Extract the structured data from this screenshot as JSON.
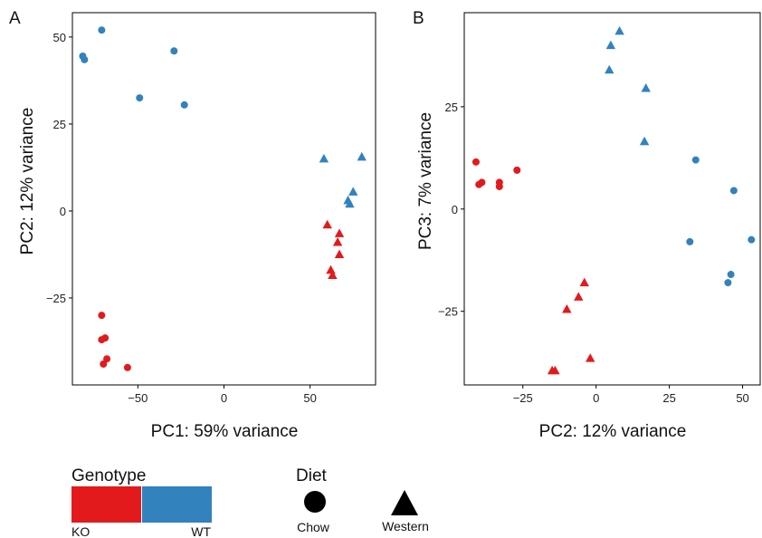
{
  "colors": {
    "KO": "#e31a1c",
    "WT": "#3182bd",
    "axis": "#000000",
    "legend_shape": "#000000"
  },
  "chart_data": [
    {
      "panel": "A",
      "type": "scatter",
      "xlabel": "PC1: 59% variance",
      "ylabel": "PC2: 12% variance",
      "xlim": [
        -88,
        88
      ],
      "ylim": [
        -50,
        57
      ],
      "xticks": [
        -50,
        0,
        50
      ],
      "yticks": [
        50,
        25,
        0,
        -25
      ],
      "ytick_labels": [
        "50",
        "25",
        "0",
        "−25"
      ],
      "xtick_labels": [
        "−50",
        "0",
        "50"
      ],
      "grid": false,
      "series": [
        {
          "genotype": "WT",
          "diet": "Chow",
          "points": [
            [
              -82,
              44.5
            ],
            [
              -81,
              43.5
            ],
            [
              -71,
              52
            ],
            [
              -29,
              46
            ],
            [
              -49,
              32.5
            ],
            [
              -23,
              30.5
            ]
          ]
        },
        {
          "genotype": "WT",
          "diet": "Western",
          "points": [
            [
              80,
              15.5
            ],
            [
              58,
              15
            ],
            [
              75,
              5.5
            ],
            [
              72,
              3
            ],
            [
              73,
              2
            ]
          ]
        },
        {
          "genotype": "KO",
          "diet": "Western",
          "points": [
            [
              60,
              -4
            ],
            [
              67,
              -6.5
            ],
            [
              66,
              -9
            ],
            [
              67,
              -12.5
            ],
            [
              62,
              -17
            ],
            [
              63,
              -18.5
            ]
          ]
        },
        {
          "genotype": "KO",
          "diet": "Chow",
          "points": [
            [
              -71,
              -30
            ],
            [
              -71,
              -37
            ],
            [
              -69,
              -36.5
            ],
            [
              -68,
              -42.5
            ],
            [
              -70,
              -44
            ],
            [
              -56,
              -45
            ]
          ]
        }
      ]
    },
    {
      "panel": "B",
      "type": "scatter",
      "xlabel": "PC2: 12% variance",
      "ylabel": "PC3: 7% variance",
      "xlim": [
        -45,
        56
      ],
      "ylim": [
        -43,
        48
      ],
      "xticks": [
        -25,
        0,
        25,
        50
      ],
      "yticks": [
        25,
        0,
        -25
      ],
      "xtick_labels": [
        "−25",
        "0",
        "25",
        "50"
      ],
      "ytick_labels": [
        "25",
        "0",
        "−25"
      ],
      "grid": false,
      "series": [
        {
          "genotype": "WT",
          "diet": "Western",
          "points": [
            [
              8,
              43.5
            ],
            [
              5,
              40
            ],
            [
              4.5,
              34
            ],
            [
              17,
              29.5
            ],
            [
              16.5,
              16.5
            ]
          ]
        },
        {
          "genotype": "WT",
          "diet": "Chow",
          "points": [
            [
              34,
              12
            ],
            [
              47,
              4.5
            ],
            [
              53,
              -7.5
            ],
            [
              32,
              -8
            ],
            [
              46,
              -16
            ],
            [
              45,
              -18
            ]
          ]
        },
        {
          "genotype": "KO",
          "diet": "Chow",
          "points": [
            [
              -41,
              11.5
            ],
            [
              -27,
              9.5
            ],
            [
              -40,
              6
            ],
            [
              -39,
              6.5
            ],
            [
              -33,
              6.5
            ],
            [
              -33,
              5.5
            ]
          ]
        },
        {
          "genotype": "KO",
          "diet": "Western",
          "points": [
            [
              -4,
              -18
            ],
            [
              -6,
              -21.5
            ],
            [
              -10,
              -24.5
            ],
            [
              -2,
              -36.5
            ],
            [
              -15,
              -39.5
            ],
            [
              -14,
              -39.5
            ]
          ]
        }
      ]
    }
  ],
  "panels": {
    "A": "A",
    "B": "B"
  },
  "legend": {
    "genotype_title": "Genotype",
    "genotype_items": [
      {
        "key": "KO",
        "label": "KO"
      },
      {
        "key": "WT",
        "label": "WT"
      }
    ],
    "diet_title": "Diet",
    "diet_items": [
      {
        "shape": "circle",
        "label": "Chow"
      },
      {
        "shape": "triangle",
        "label": "Western"
      }
    ]
  }
}
